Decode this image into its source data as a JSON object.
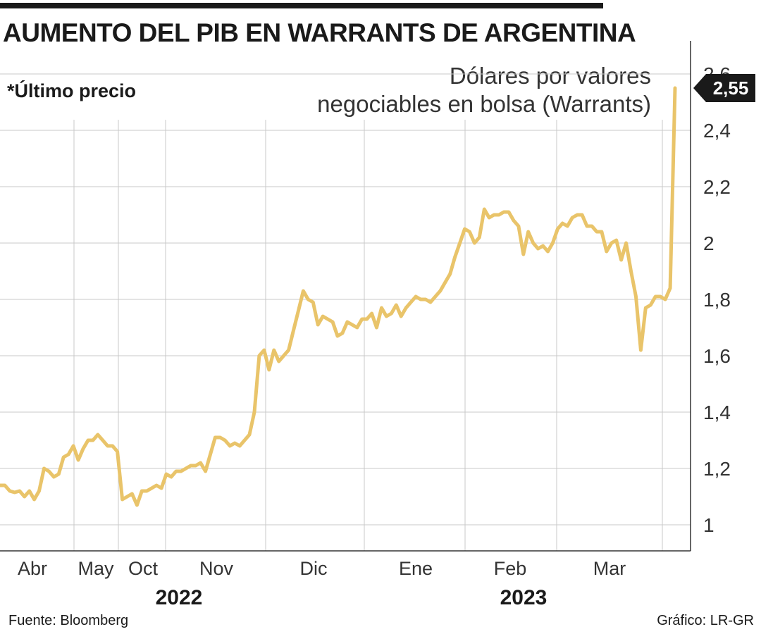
{
  "title": "AUMENTO DEL PIB EN WARRANTS DE ARGENTINA",
  "note": "*Último precio",
  "series_label": [
    "Dólares por valores",
    "negociables en bolsa (Warrants)"
  ],
  "source": "Fuente: Bloomberg",
  "credit": "Gráfico: LR-GR",
  "colors": {
    "line": "#e9c46a",
    "grid": "#c8c8c8",
    "axis": "#333333",
    "callout": "#1a1a1a"
  },
  "chart_data": {
    "type": "line",
    "title": "AUMENTO DEL PIB EN WARRANTS DE ARGENTINA",
    "ylabel": "Dólares por valores negociables en bolsa (Warrants)",
    "ylim": [
      1,
      2.6
    ],
    "yticks": [
      {
        "value": 1,
        "label": "1"
      },
      {
        "value": 1.2,
        "label": "1,2"
      },
      {
        "value": 1.4,
        "label": "1,4"
      },
      {
        "value": 1.6,
        "label": "1,6"
      },
      {
        "value": 1.8,
        "label": "1,8"
      },
      {
        "value": 2,
        "label": "2"
      },
      {
        "value": 2.2,
        "label": "2,2"
      },
      {
        "value": 2.4,
        "label": "2,4"
      },
      {
        "value": 2.6,
        "label": "2,6"
      }
    ],
    "xticks": [
      "Abr",
      "May",
      "Oct",
      "Nov",
      "Dic",
      "Ene",
      "Feb",
      "Mar"
    ],
    "years": [
      "2022",
      "2023"
    ],
    "grid": true,
    "last_value": 2.55,
    "last_value_label": "2,55",
    "values": [
      1.14,
      1.14,
      1.12,
      1.115,
      1.12,
      1.1,
      1.12,
      1.09,
      1.12,
      1.2,
      1.19,
      1.17,
      1.18,
      1.24,
      1.25,
      1.28,
      1.23,
      1.27,
      1.3,
      1.3,
      1.32,
      1.3,
      1.28,
      1.28,
      1.26,
      1.09,
      1.1,
      1.11,
      1.07,
      1.12,
      1.12,
      1.13,
      1.14,
      1.13,
      1.18,
      1.17,
      1.19,
      1.19,
      1.2,
      1.21,
      1.21,
      1.22,
      1.19,
      1.25,
      1.31,
      1.31,
      1.3,
      1.28,
      1.29,
      1.28,
      1.3,
      1.32,
      1.4,
      1.6,
      1.62,
      1.55,
      1.62,
      1.58,
      1.6,
      1.62,
      1.69,
      1.76,
      1.83,
      1.8,
      1.79,
      1.71,
      1.74,
      1.73,
      1.72,
      1.67,
      1.68,
      1.72,
      1.71,
      1.7,
      1.73,
      1.73,
      1.75,
      1.7,
      1.77,
      1.74,
      1.75,
      1.78,
      1.74,
      1.77,
      1.79,
      1.81,
      1.8,
      1.8,
      1.79,
      1.81,
      1.83,
      1.86,
      1.89,
      1.95,
      2.0,
      2.05,
      2.04,
      2.0,
      2.02,
      2.12,
      2.09,
      2.1,
      2.1,
      2.11,
      2.11,
      2.08,
      2.06,
      1.96,
      2.04,
      2.0,
      1.98,
      1.99,
      1.97,
      2.0,
      2.05,
      2.07,
      2.06,
      2.09,
      2.1,
      2.1,
      2.06,
      2.06,
      2.04,
      2.04,
      1.97,
      2.0,
      2.01,
      1.94,
      2.0,
      1.9,
      1.81,
      1.62,
      1.77,
      1.78,
      1.81,
      1.81,
      1.8,
      1.84,
      2.55
    ]
  }
}
